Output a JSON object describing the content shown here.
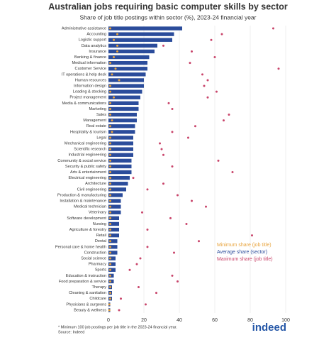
{
  "chart_data": {
    "type": "bar",
    "orientation": "horizontal",
    "title": "Australian jobs requiring basic computer skills by sector",
    "subtitle": "Share of job title postings within sector (%), 2023-24 financial year",
    "categories": [
      "Administrative assistance",
      "Accounting",
      "Logistic support",
      "Data analytics",
      "Insurance",
      "Banking & finance",
      "Medical information",
      "Customer Service",
      "IT operations & help desk",
      "Human resources",
      "Information design",
      "Loading & stocking",
      "Project management",
      "Media & communications",
      "Marketing",
      "Sales",
      "Management",
      "Real estate",
      "Hospitality & tourism",
      "Legal",
      "Mechanical engineering",
      "Scientific research",
      "Industrial engineering",
      "Community & social service",
      "Security & public safety",
      "Arts & entertainment",
      "Electrical engineering",
      "Architecture",
      "Civil engineering",
      "Production & manufacturing",
      "Installation & maintenance",
      "Medical technician",
      "Veterinary",
      "Software development",
      "Nursing",
      "Agriculture & forestry",
      "Retail",
      "Dental",
      "Personal care & home health",
      "Construction",
      "Social science",
      "Pharmacy",
      "Sports",
      "Education & instruction",
      "Food preparation & service",
      "Therapy",
      "Cleaning & sanitation",
      "Childcare",
      "Physicians & surgeons",
      "Beauty & wellness"
    ],
    "series": [
      {
        "name": "Average share (sector)",
        "color": "#2b4c9b",
        "marker": "bar",
        "values": [
          41.6,
          37,
          36,
          27.6,
          26,
          23,
          22,
          22,
          21,
          20,
          20,
          19,
          18,
          17,
          17,
          16,
          16,
          15,
          15,
          14,
          14,
          14,
          14,
          13,
          13,
          13,
          12,
          11,
          10,
          8,
          7,
          7,
          7,
          6,
          6,
          6,
          6,
          5,
          5,
          5,
          4,
          4,
          4,
          3,
          3,
          2,
          2,
          2,
          1,
          1
        ]
      },
      {
        "name": "Minimum share (job title)",
        "color": "#e8a33c",
        "marker": "dot",
        "values": [
          1,
          5,
          3,
          5,
          5,
          3,
          1,
          4,
          2,
          6,
          1,
          1,
          3,
          1,
          1,
          1,
          2,
          1,
          2,
          1,
          1,
          1,
          1,
          1,
          1,
          1,
          1,
          1,
          1,
          1,
          1,
          1,
          1,
          1,
          1,
          1,
          1,
          1,
          1,
          1,
          1,
          1,
          1,
          1,
          1,
          1,
          1,
          1,
          0.5,
          0.5
        ]
      },
      {
        "name": "Maximum share (job title)",
        "color": "#c9456b",
        "marker": "dot",
        "values": [
          93,
          64,
          58,
          31,
          47,
          60,
          46,
          96,
          53,
          56,
          54,
          61,
          56,
          34,
          36,
          68,
          65,
          49,
          36,
          45,
          29,
          30,
          31,
          62,
          36,
          70,
          14,
          31,
          22,
          39,
          47,
          55,
          19,
          35,
          44,
          22,
          81,
          51,
          22,
          37,
          18,
          16,
          12,
          36,
          39,
          17,
          27,
          7,
          21,
          6
        ]
      }
    ],
    "xlim": [
      0,
      100
    ],
    "xticks": [
      0,
      20,
      40,
      60,
      80,
      100
    ],
    "grid": true,
    "notes": [
      "* Minimum 100 job postings per job title in the 2023-24 financial year.",
      "Source: Indeed"
    ],
    "logo": "indeed"
  }
}
